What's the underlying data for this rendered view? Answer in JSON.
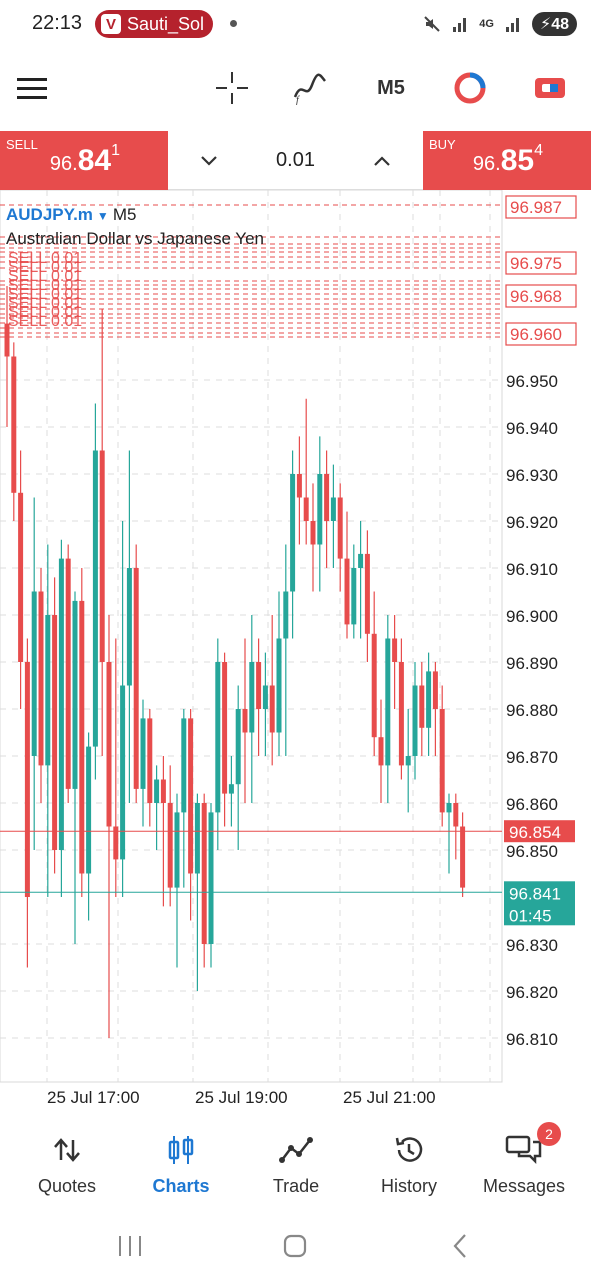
{
  "status": {
    "time": "22:13",
    "app_name": "Sauti_Sol",
    "network": "4G",
    "battery": "48"
  },
  "toolbar": {
    "timeframe": "M5",
    "icons": [
      "menu-icon",
      "crosshair-icon",
      "indicators-icon",
      "timeframe",
      "objects-icon",
      "trade-icon"
    ]
  },
  "trade": {
    "sell_label": "SELL",
    "sell_small": "96.",
    "sell_big": "84",
    "sell_sup": "1",
    "buy_label": "BUY",
    "buy_small": "96.",
    "buy_big": "85",
    "buy_sup": "4",
    "volume": "0.01"
  },
  "chart": {
    "symbol": "AUDJPY.m",
    "timeframe": "M5",
    "description": "Australian Dollar vs Japanese Yen",
    "order_label": "SELL 0.01",
    "top_price_labels": [
      "96.987",
      "96.975",
      "96.968",
      "96.960"
    ],
    "price_ticks": [
      "96.950",
      "96.940",
      "96.930",
      "96.920",
      "96.910",
      "96.900",
      "96.890",
      "96.880",
      "96.870",
      "96.860",
      "96.850",
      "96.830",
      "96.820",
      "96.810"
    ],
    "ask_label": "96.854",
    "bid_label": "96.841",
    "countdown": "01:45",
    "time_labels": [
      "25 Jul 17:00",
      "25 Jul 19:00",
      "25 Jul 21:00"
    ],
    "colors": {
      "bull": "#26a69a",
      "bear": "#e74c4c",
      "ask_line": "#e74c4c",
      "bid_line": "#26a69a"
    }
  },
  "chart_data": {
    "type": "candlestick",
    "symbol": "AUDJPY.m",
    "ylim": [
      96.805,
      96.99
    ],
    "candles": [
      [
        96.962,
        96.97,
        96.94,
        96.955
      ],
      [
        96.955,
        96.958,
        96.92,
        96.926
      ],
      [
        96.926,
        96.935,
        96.88,
        96.89
      ],
      [
        96.89,
        96.895,
        96.825,
        96.84
      ],
      [
        96.87,
        96.925,
        96.85,
        96.905
      ],
      [
        96.905,
        96.91,
        96.86,
        96.868
      ],
      [
        96.868,
        96.915,
        96.84,
        96.9
      ],
      [
        96.9,
        96.908,
        96.845,
        96.85
      ],
      [
        96.85,
        96.916,
        96.84,
        96.912
      ],
      [
        96.912,
        96.915,
        96.86,
        96.863
      ],
      [
        96.863,
        96.905,
        96.83,
        96.903
      ],
      [
        96.903,
        96.91,
        96.84,
        96.845
      ],
      [
        96.845,
        96.875,
        96.835,
        96.872
      ],
      [
        96.872,
        96.945,
        96.865,
        96.935
      ],
      [
        96.935,
        96.965,
        96.87,
        96.89
      ],
      [
        96.89,
        96.9,
        96.81,
        96.855
      ],
      [
        96.855,
        96.895,
        96.84,
        96.848
      ],
      [
        96.848,
        96.92,
        96.84,
        96.885
      ],
      [
        96.885,
        96.935,
        96.86,
        96.91
      ],
      [
        96.91,
        96.915,
        96.86,
        96.863
      ],
      [
        96.863,
        96.882,
        96.855,
        96.878
      ],
      [
        96.878,
        96.88,
        96.855,
        96.86
      ],
      [
        96.86,
        96.868,
        96.85,
        96.865
      ],
      [
        96.865,
        96.87,
        96.838,
        96.86
      ],
      [
        96.86,
        96.868,
        96.838,
        96.842
      ],
      [
        96.842,
        96.862,
        96.825,
        96.858
      ],
      [
        96.858,
        96.88,
        96.842,
        96.878
      ],
      [
        96.878,
        96.88,
        96.835,
        96.845
      ],
      [
        96.845,
        96.862,
        96.82,
        96.86
      ],
      [
        96.86,
        96.862,
        96.825,
        96.83
      ],
      [
        96.83,
        96.86,
        96.825,
        96.858
      ],
      [
        96.858,
        96.895,
        96.85,
        96.89
      ],
      [
        96.89,
        96.892,
        96.855,
        96.862
      ],
      [
        96.862,
        96.87,
        96.855,
        96.864
      ],
      [
        96.864,
        96.885,
        96.85,
        96.88
      ],
      [
        96.88,
        96.895,
        96.86,
        96.875
      ],
      [
        96.875,
        96.9,
        96.86,
        96.89
      ],
      [
        96.89,
        96.895,
        96.87,
        96.88
      ],
      [
        96.88,
        96.892,
        96.87,
        96.885
      ],
      [
        96.885,
        96.9,
        96.868,
        96.875
      ],
      [
        96.875,
        96.905,
        96.87,
        96.895
      ],
      [
        96.895,
        96.915,
        96.87,
        96.905
      ],
      [
        96.905,
        96.935,
        96.895,
        96.93
      ],
      [
        96.93,
        96.938,
        96.915,
        96.925
      ],
      [
        96.925,
        96.946,
        96.915,
        96.92
      ],
      [
        96.92,
        96.928,
        96.905,
        96.915
      ],
      [
        96.915,
        96.938,
        96.905,
        96.93
      ],
      [
        96.93,
        96.935,
        96.91,
        96.92
      ],
      [
        96.92,
        96.932,
        96.91,
        96.925
      ],
      [
        96.925,
        96.928,
        96.905,
        96.912
      ],
      [
        96.912,
        96.922,
        96.895,
        96.898
      ],
      [
        96.898,
        96.915,
        96.895,
        96.91
      ],
      [
        96.91,
        96.92,
        96.895,
        96.913
      ],
      [
        96.913,
        96.918,
        96.89,
        96.896
      ],
      [
        96.896,
        96.905,
        96.87,
        96.874
      ],
      [
        96.874,
        96.882,
        96.86,
        96.868
      ],
      [
        96.868,
        96.9,
        96.86,
        96.895
      ],
      [
        96.895,
        96.9,
        96.88,
        96.89
      ],
      [
        96.89,
        96.895,
        96.865,
        96.868
      ],
      [
        96.868,
        96.88,
        96.858,
        96.87
      ],
      [
        96.87,
        96.89,
        96.865,
        96.885
      ],
      [
        96.885,
        96.89,
        96.87,
        96.876
      ],
      [
        96.876,
        96.892,
        96.87,
        96.888
      ],
      [
        96.888,
        96.89,
        96.87,
        96.88
      ],
      [
        96.88,
        96.885,
        96.855,
        96.858
      ],
      [
        96.858,
        96.862,
        96.845,
        96.86
      ],
      [
        96.86,
        96.862,
        96.848,
        96.855
      ],
      [
        96.855,
        96.858,
        96.84,
        96.842
      ]
    ],
    "ask": 96.854,
    "bid": 96.841,
    "x_labels": [
      "25 Jul 17:00",
      "25 Jul 19:00",
      "25 Jul 21:00"
    ]
  },
  "nav": {
    "items": [
      {
        "label": "Quotes",
        "icon": "quotes-icon"
      },
      {
        "label": "Charts",
        "icon": "charts-icon"
      },
      {
        "label": "Trade",
        "icon": "trade-icon"
      },
      {
        "label": "History",
        "icon": "history-icon"
      },
      {
        "label": "Messages",
        "icon": "messages-icon"
      }
    ],
    "active": "Charts",
    "messages_badge": "2"
  }
}
